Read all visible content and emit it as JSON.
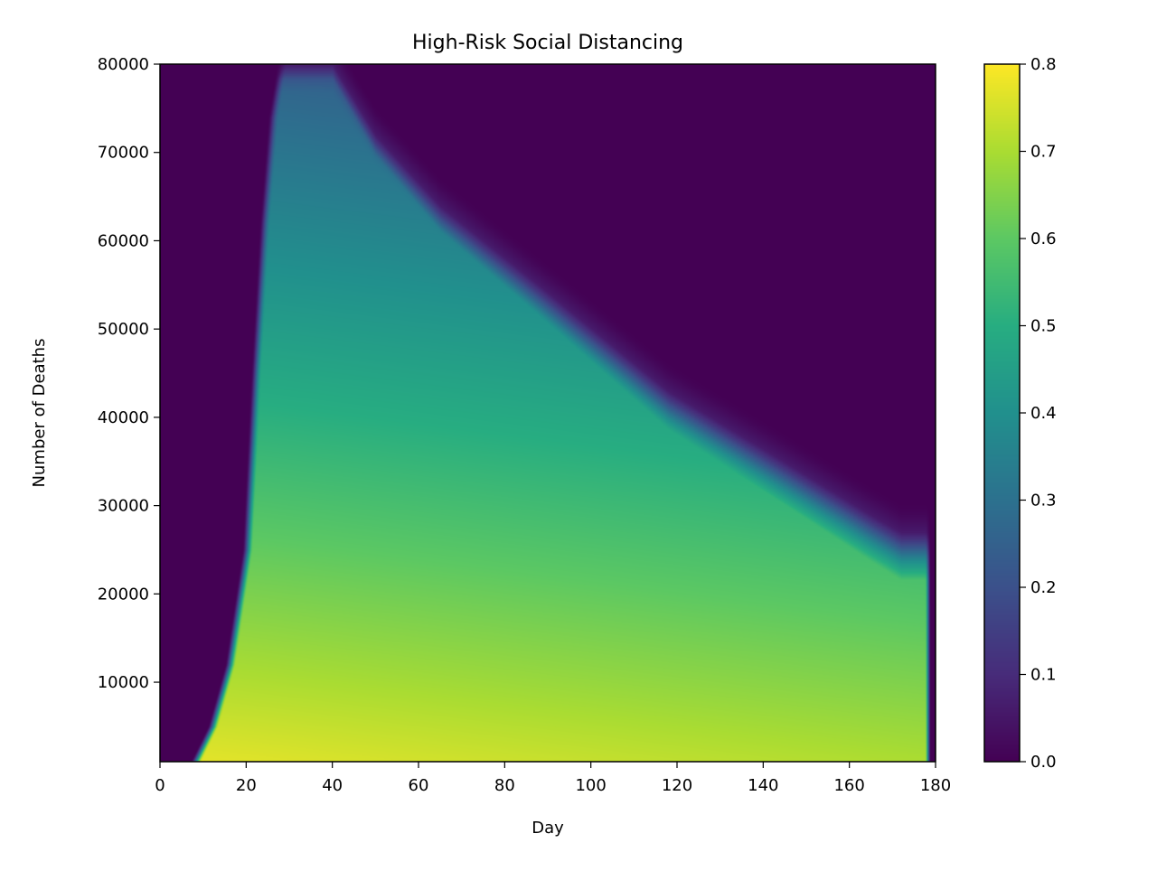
{
  "chart_data": {
    "type": "heatmap",
    "title": "High-Risk Social Distancing",
    "xlabel": "Day",
    "ylabel": "Number of Deaths",
    "xlim": [
      0,
      180
    ],
    "ylim": [
      1000,
      80000
    ],
    "x_ticks": [
      0,
      20,
      40,
      60,
      80,
      100,
      120,
      140,
      160,
      180
    ],
    "x_tick_labels": [
      "0",
      "20",
      "40",
      "60",
      "80",
      "100",
      "120",
      "140",
      "160",
      "180"
    ],
    "y_ticks": [
      10000,
      20000,
      30000,
      40000,
      50000,
      60000,
      70000,
      80000
    ],
    "y_tick_labels": [
      "10000",
      "20000",
      "30000",
      "40000",
      "50000",
      "60000",
      "70000",
      "80000"
    ],
    "colorbar": {
      "colormap": "viridis",
      "range": [
        0.0,
        0.8
      ],
      "ticks": [
        0.0,
        0.1,
        0.2,
        0.3,
        0.4,
        0.5,
        0.6,
        0.7,
        0.8
      ],
      "tick_labels": [
        "0.0",
        "0.1",
        "0.2",
        "0.3",
        "0.4",
        "0.5",
        "0.6",
        "0.7",
        "0.8"
      ]
    },
    "grid": false,
    "onset_day": {
      "days": [
        8,
        12,
        16,
        20,
        22,
        24,
        26,
        28
      ],
      "deaths": [
        1000,
        5000,
        12000,
        25000,
        45000,
        62000,
        74000,
        80000
      ]
    },
    "upper_limit": {
      "days": [
        25,
        40,
        50,
        65,
        88,
        118,
        145,
        165,
        172,
        178
      ],
      "deaths": [
        80000,
        80000,
        72000,
        64000,
        55000,
        43000,
        35000,
        29000,
        27000,
        27000
      ]
    },
    "last_day": 178,
    "value_at_floor": 0.78,
    "value_decay_per_day": 0.0004,
    "value_decay_per_1000_deaths": 0.0065
  }
}
